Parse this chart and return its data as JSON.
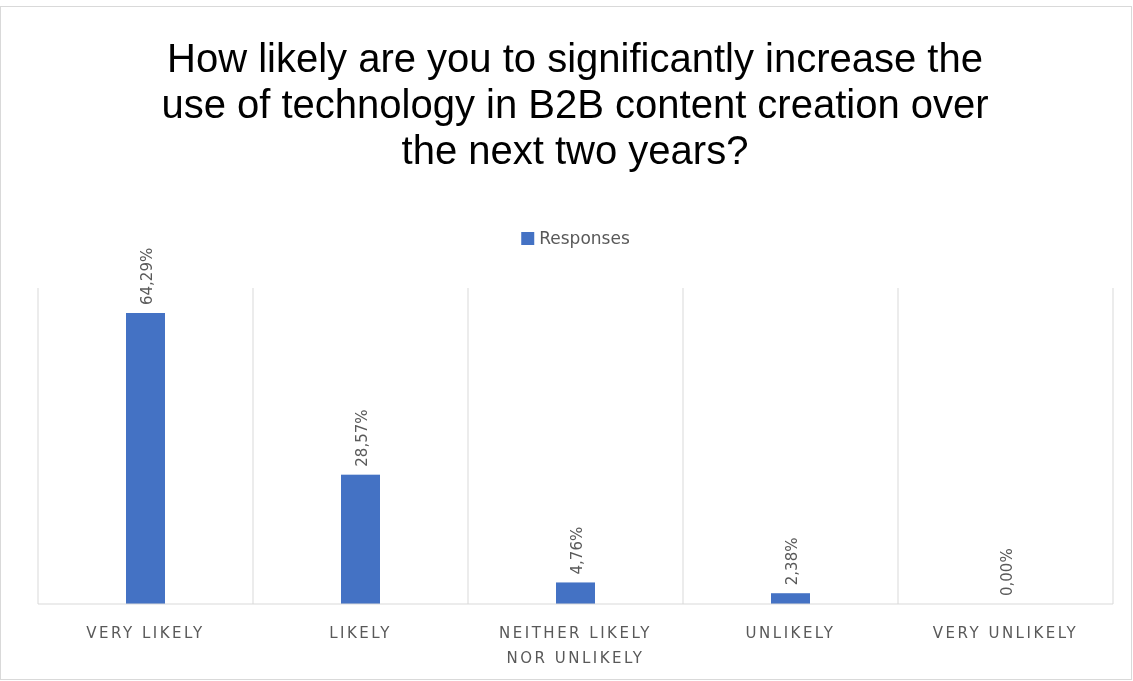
{
  "chart_data": {
    "type": "bar",
    "title": "How likely are you to significantly increase the use of technology in B2B content creation over the next two years?",
    "categories": [
      "VERY LIKELY",
      "LIKELY",
      "NEITHER LIKELY NOR UNLIKELY",
      "UNLIKELY",
      "VERY UNLIKELY"
    ],
    "series": [
      {
        "name": "Responses",
        "color": "#4472c4",
        "values": [
          64.29,
          28.57,
          4.76,
          2.38,
          0
        ],
        "value_labels": [
          "64,29%",
          "28,57%",
          "4,76%",
          "2,38%",
          "0,00%"
        ]
      }
    ],
    "grid": "x",
    "legend": "top"
  }
}
